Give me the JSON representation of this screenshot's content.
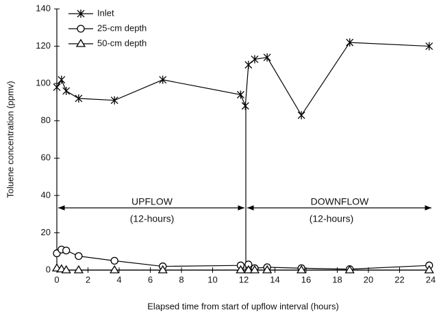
{
  "chart_data": {
    "type": "line",
    "xlabel": "Elapsed time from start of upflow interval (hours)",
    "ylabel": "Toluene concentration (ppmv)",
    "xlim": [
      0,
      24
    ],
    "xticks": [
      0,
      2,
      4,
      6,
      8,
      10,
      12,
      14,
      16,
      18,
      20,
      22,
      24
    ],
    "ylim": [
      0,
      140
    ],
    "yticks": [
      0,
      20,
      40,
      60,
      80,
      100,
      120,
      140
    ],
    "grid": false,
    "legend": "upper left",
    "annotations": [
      "UPFLOW",
      "(12-hours)",
      "DOWNFLOW",
      "(12-hours)"
    ],
    "series": [
      {
        "name": "Inlet",
        "color": "#000000",
        "marker": "star",
        "x": [
          0,
          0.3,
          0.6,
          1.4,
          3.7,
          6.8,
          11.8,
          12.1,
          12.3,
          12.7,
          13.5,
          15.7,
          18.8,
          23.9
        ],
        "values": [
          98,
          102,
          96,
          92,
          91,
          102,
          94,
          88,
          110,
          113,
          114,
          83,
          122,
          120
        ]
      },
      {
        "name": "25-cm depth",
        "color": "#000000",
        "marker": "circle",
        "x": [
          0,
          0.3,
          0.6,
          1.4,
          3.7,
          6.8,
          11.8,
          12.3,
          12.7,
          13.5,
          15.7,
          18.8,
          23.9
        ],
        "values": [
          9,
          11,
          10.5,
          7.5,
          5,
          2,
          2.5,
          3,
          1,
          1.5,
          1,
          0.5,
          2.5
        ]
      },
      {
        "name": "50-cm depth",
        "color": "#000000",
        "marker": "triangle",
        "x": [
          0,
          0.3,
          0.6,
          1.4,
          3.7,
          6.8,
          11.8,
          12.3,
          12.7,
          13.5,
          15.7,
          18.8,
          23.9
        ],
        "values": [
          1,
          0.5,
          0,
          0,
          0,
          0,
          0,
          0,
          0,
          0,
          0,
          0,
          0
        ]
      }
    ]
  }
}
